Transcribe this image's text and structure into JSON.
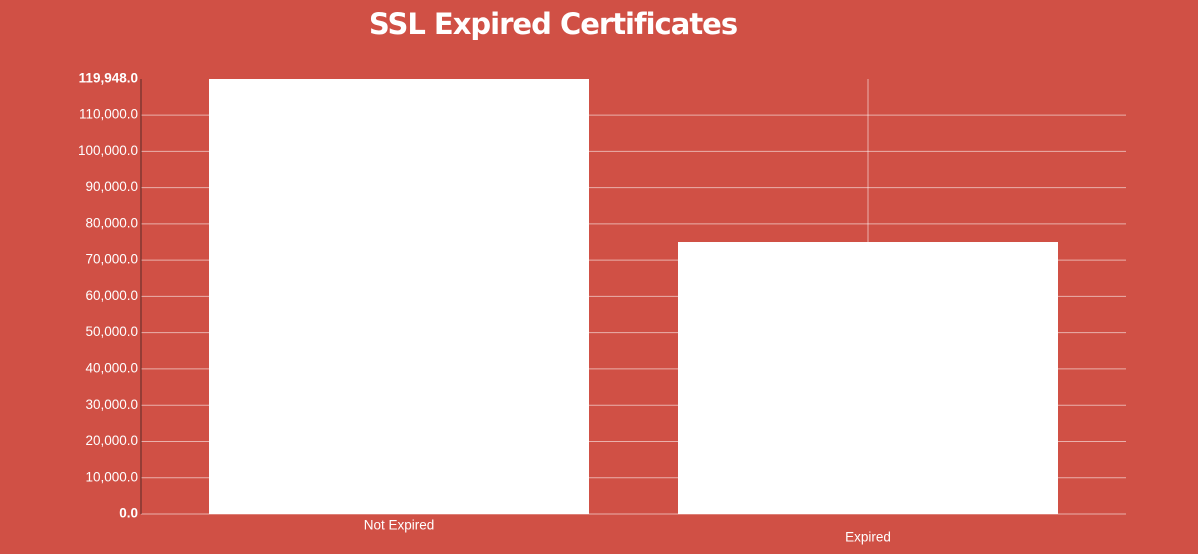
{
  "chart_data": {
    "type": "bar",
    "title": "SSL Expired Certificates",
    "categories": [
      "Not Expired",
      "Expired"
    ],
    "values": [
      119948,
      75000
    ],
    "color": "#ffffff",
    "ylim": [
      0,
      119948
    ],
    "yticks": [
      {
        "value": 0,
        "label": "0.0"
      },
      {
        "value": 10000,
        "label": "10,000.0"
      },
      {
        "value": 20000,
        "label": "20,000.0"
      },
      {
        "value": 30000,
        "label": "30,000.0"
      },
      {
        "value": 40000,
        "label": "40,000.0"
      },
      {
        "value": 50000,
        "label": "50,000.0"
      },
      {
        "value": 60000,
        "label": "60,000.0"
      },
      {
        "value": 70000,
        "label": "70,000.0"
      },
      {
        "value": 80000,
        "label": "80,000.0"
      },
      {
        "value": 90000,
        "label": "90,000.0"
      },
      {
        "value": 100000,
        "label": "100,000.0"
      },
      {
        "value": 110000,
        "label": "110,000.0"
      },
      {
        "value": 119948,
        "label": "119,948.0"
      }
    ],
    "grid": true
  }
}
